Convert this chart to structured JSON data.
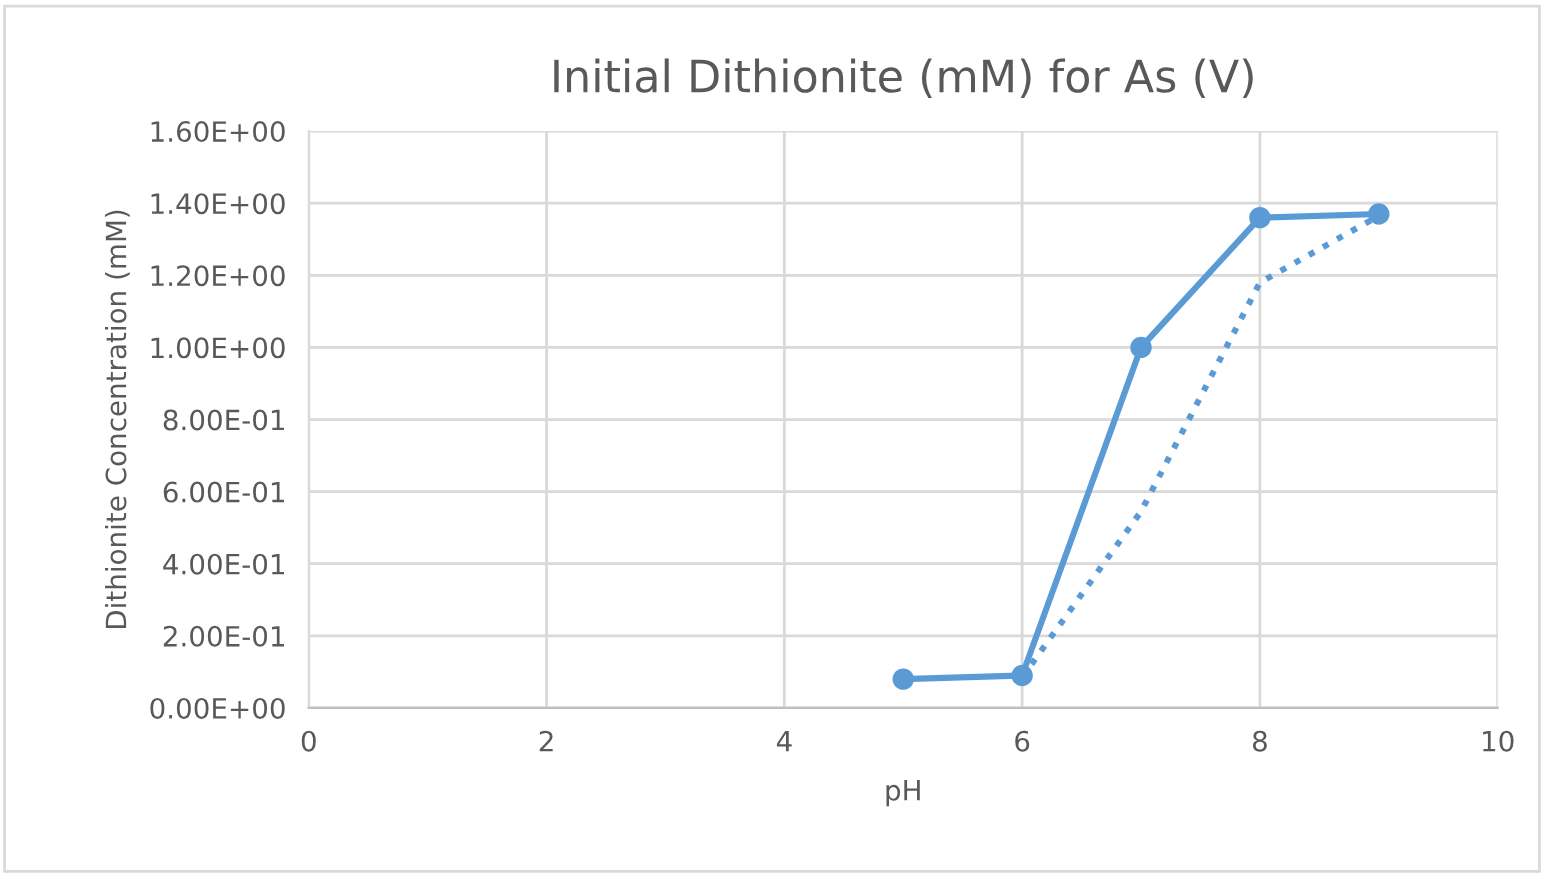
{
  "chart_data": {
    "type": "line",
    "title": "Initial Dithionite (mM) for As (V)",
    "xlabel": "pH",
    "ylabel": "Dithionite Concentration (mM)",
    "xlim": [
      0,
      10
    ],
    "xticks": [
      0,
      2,
      4,
      6,
      8,
      10
    ],
    "ylim": [
      0,
      1.6
    ],
    "yticks": [
      {
        "value": 0,
        "label": "0.00E+00"
      },
      {
        "value": 0.2,
        "label": "2.00E-01"
      },
      {
        "value": 0.4,
        "label": "4.00E-01"
      },
      {
        "value": 0.6,
        "label": "6.00E-01"
      },
      {
        "value": 0.8,
        "label": "8.00E-01"
      },
      {
        "value": 1.0,
        "label": "1.00E+00"
      },
      {
        "value": 1.2,
        "label": "1.20E+00"
      },
      {
        "value": 1.4,
        "label": "1.40E+00"
      },
      {
        "value": 1.6,
        "label": "1.60E+00"
      }
    ],
    "grid": true,
    "legend": false,
    "series": [
      {
        "color": "#5b9bd5",
        "x": [
          5,
          6,
          7,
          8,
          9
        ],
        "values": [
          0.08,
          0.09,
          1.0,
          1.36,
          1.37
        ],
        "marker": "circle",
        "line_style": "solid"
      },
      {
        "color": "#5b9bd5",
        "x": [
          6,
          7,
          8,
          9
        ],
        "values": [
          0.085,
          0.545,
          1.18,
          1.365
        ],
        "marker": "none",
        "line_style": "dotted"
      }
    ]
  }
}
